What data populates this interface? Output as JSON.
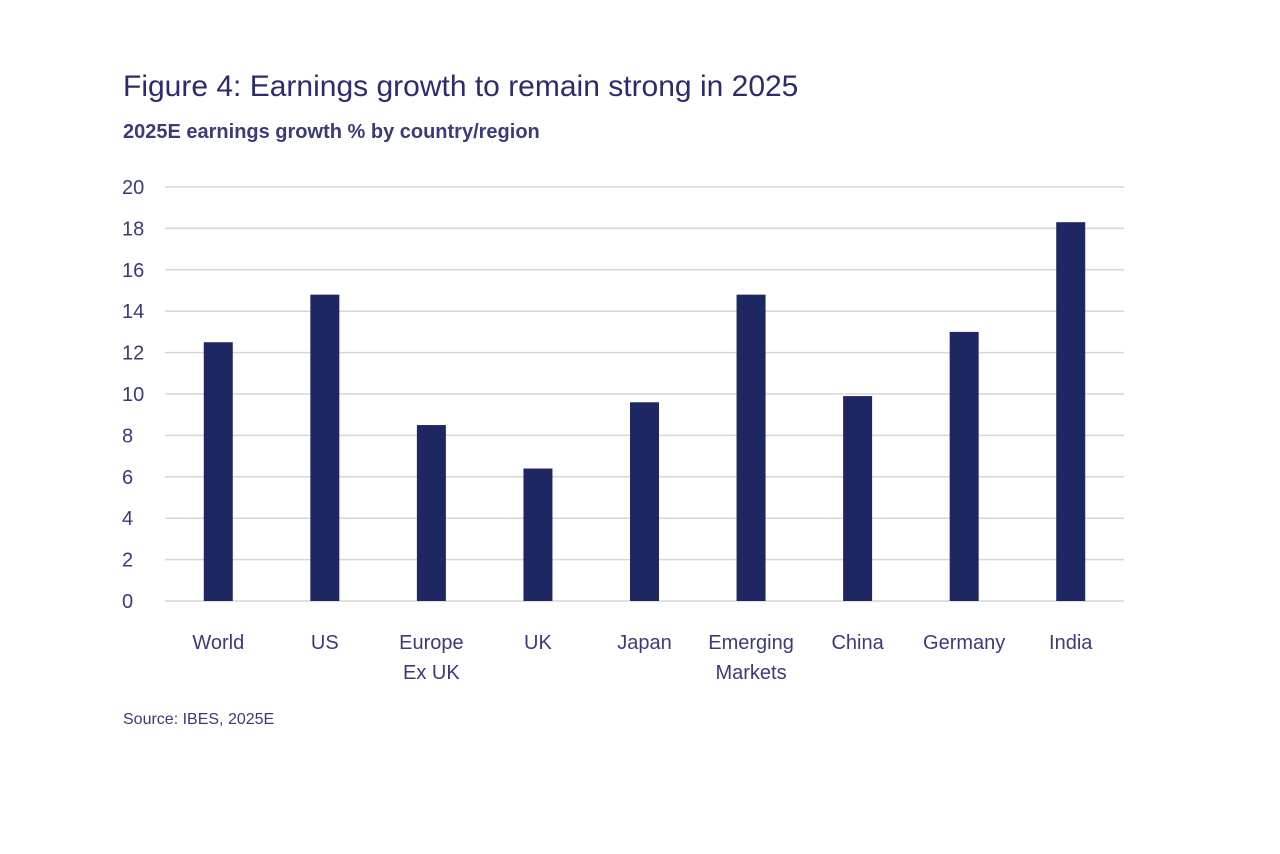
{
  "header": {
    "title": "Figure 4: Earnings growth to remain strong in 2025",
    "subtitle": "2025E earnings growth % by country/region"
  },
  "footer": {
    "source": "Source: IBES, 2025E"
  },
  "colors": {
    "bar": "#1f2763",
    "grid": "#d6d6d6",
    "text": "#3b3a7a"
  },
  "chart_data": {
    "type": "bar",
    "title": "Figure 4: Earnings growth to remain strong in 2025",
    "subtitle": "2025E earnings growth % by country/region",
    "xlabel": "",
    "ylabel": "",
    "categories": [
      [
        "World"
      ],
      [
        "US"
      ],
      [
        "Europe",
        "Ex UK"
      ],
      [
        "UK"
      ],
      [
        "Japan"
      ],
      [
        "Emerging",
        "Markets"
      ],
      [
        "China"
      ],
      [
        "Germany"
      ],
      [
        "India"
      ]
    ],
    "values": [
      12.5,
      14.8,
      8.5,
      6.4,
      9.6,
      14.8,
      9.9,
      13.0,
      18.3
    ],
    "ylim": [
      0,
      20
    ],
    "yticks": [
      0,
      2,
      4,
      6,
      8,
      10,
      12,
      14,
      16,
      18,
      20
    ],
    "grid": true,
    "legend": "none"
  }
}
